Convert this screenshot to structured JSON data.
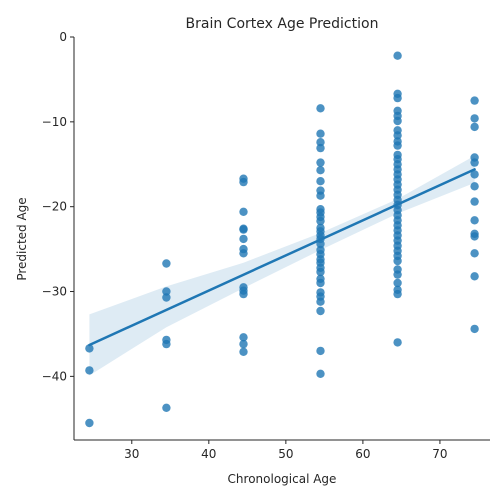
{
  "chart_data": {
    "type": "scatter",
    "title": "Brain Cortex Age Prediction",
    "xlabel": "Chronological Age",
    "ylabel": "Predicted Age",
    "xlim": [
      22.5,
      76.5
    ],
    "ylim": [
      -47.5,
      0
    ],
    "xticks": [
      30,
      40,
      50,
      60,
      70
    ],
    "yticks": [
      -40,
      -30,
      -20,
      -10,
      0
    ],
    "colors": {
      "points": "#1f77b4",
      "line": "#1f77b4",
      "band": "#1f77b4"
    },
    "points": [
      [
        24.5,
        -36.7
      ],
      [
        24.5,
        -39.3
      ],
      [
        24.5,
        -45.5
      ],
      [
        34.5,
        -26.7
      ],
      [
        34.5,
        -30.0
      ],
      [
        34.5,
        -30.7
      ],
      [
        34.5,
        -35.7
      ],
      [
        34.5,
        -36.2
      ],
      [
        34.5,
        -43.7
      ],
      [
        44.5,
        -16.7
      ],
      [
        44.5,
        -17.1
      ],
      [
        44.5,
        -20.6
      ],
      [
        44.5,
        -22.6
      ],
      [
        44.5,
        -22.7
      ],
      [
        44.5,
        -23.8
      ],
      [
        44.5,
        -25.0
      ],
      [
        44.5,
        -25.5
      ],
      [
        44.5,
        -29.5
      ],
      [
        44.5,
        -29.9
      ],
      [
        44.5,
        -30.3
      ],
      [
        44.5,
        -35.4
      ],
      [
        44.5,
        -36.2
      ],
      [
        44.5,
        -37.1
      ],
      [
        54.5,
        -8.4
      ],
      [
        54.5,
        -11.4
      ],
      [
        54.5,
        -12.4
      ],
      [
        54.5,
        -13.1
      ],
      [
        54.5,
        -14.8
      ],
      [
        54.5,
        -15.7
      ],
      [
        54.5,
        -17.0
      ],
      [
        54.5,
        -18.1
      ],
      [
        54.5,
        -18.7
      ],
      [
        54.5,
        -20.3
      ],
      [
        54.5,
        -20.7
      ],
      [
        54.5,
        -21.2
      ],
      [
        54.5,
        -21.7
      ],
      [
        54.5,
        -22.5
      ],
      [
        54.5,
        -22.9
      ],
      [
        54.5,
        -23.4
      ],
      [
        54.5,
        -23.8
      ],
      [
        54.5,
        -24.4
      ],
      [
        54.5,
        -25.1
      ],
      [
        54.5,
        -25.6
      ],
      [
        54.5,
        -26.2
      ],
      [
        54.5,
        -26.6
      ],
      [
        54.5,
        -27.2
      ],
      [
        54.5,
        -27.7
      ],
      [
        54.5,
        -28.5
      ],
      [
        54.5,
        -29.0
      ],
      [
        54.5,
        -30.1
      ],
      [
        54.5,
        -30.6
      ],
      [
        54.5,
        -31.2
      ],
      [
        54.5,
        -32.3
      ],
      [
        54.5,
        -37.0
      ],
      [
        54.5,
        -39.7
      ],
      [
        64.5,
        -2.2
      ],
      [
        64.5,
        -6.7
      ],
      [
        64.5,
        -7.2
      ],
      [
        64.5,
        -8.7
      ],
      [
        64.5,
        -9.3
      ],
      [
        64.5,
        -9.9
      ],
      [
        64.5,
        -11.0
      ],
      [
        64.5,
        -11.6
      ],
      [
        64.5,
        -12.3
      ],
      [
        64.5,
        -12.8
      ],
      [
        64.5,
        -13.9
      ],
      [
        64.5,
        -14.4
      ],
      [
        64.5,
        -15.0
      ],
      [
        64.5,
        -15.6
      ],
      [
        64.5,
        -16.2
      ],
      [
        64.5,
        -16.8
      ],
      [
        64.5,
        -17.4
      ],
      [
        64.5,
        -18.0
      ],
      [
        64.5,
        -18.6
      ],
      [
        64.5,
        -19.2
      ],
      [
        64.5,
        -19.8
      ],
      [
        64.5,
        -20.4
      ],
      [
        64.5,
        -21.0
      ],
      [
        64.5,
        -21.6
      ],
      [
        64.5,
        -22.2
      ],
      [
        64.5,
        -22.8
      ],
      [
        64.5,
        -23.4
      ],
      [
        64.5,
        -24.0
      ],
      [
        64.5,
        -24.6
      ],
      [
        64.5,
        -25.2
      ],
      [
        64.5,
        -25.8
      ],
      [
        64.5,
        -26.4
      ],
      [
        64.5,
        -27.4
      ],
      [
        64.5,
        -28.0
      ],
      [
        64.5,
        -29.0
      ],
      [
        64.5,
        -29.8
      ],
      [
        64.5,
        -30.3
      ],
      [
        64.5,
        -36.0
      ],
      [
        74.5,
        -7.5
      ],
      [
        74.5,
        -9.6
      ],
      [
        74.5,
        -10.6
      ],
      [
        74.5,
        -14.2
      ],
      [
        74.5,
        -14.8
      ],
      [
        74.5,
        -16.2
      ],
      [
        74.5,
        -17.6
      ],
      [
        74.5,
        -19.4
      ],
      [
        74.5,
        -21.6
      ],
      [
        74.5,
        -23.2
      ],
      [
        74.5,
        -23.5
      ],
      [
        74.5,
        -25.5
      ],
      [
        74.5,
        -28.2
      ],
      [
        74.5,
        -34.4
      ]
    ],
    "regression": {
      "x": [
        24.5,
        74.5
      ],
      "y": [
        -36.3,
        -15.6
      ]
    },
    "confidence_band": {
      "x": [
        24.5,
        34.5,
        44.5,
        54.5,
        64.5,
        74.5
      ],
      "lower": [
        -39.9,
        -34.2,
        -29.6,
        -25.1,
        -20.8,
        -17.2
      ],
      "upper": [
        -32.7,
        -29.4,
        -26.6,
        -23.1,
        -19.1,
        -14.0
      ]
    }
  }
}
